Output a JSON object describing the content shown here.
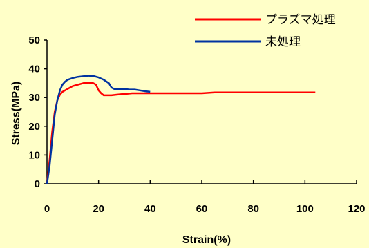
{
  "chart_data": {
    "type": "line",
    "xlabel": "Strain(%)",
    "ylabel": "Stress(MPa)",
    "xlim": [
      0,
      120
    ],
    "ylim": [
      0,
      50
    ],
    "xticks": [
      0,
      20,
      40,
      60,
      80,
      100,
      120
    ],
    "yticks": [
      0,
      10,
      20,
      30,
      40,
      50
    ],
    "grid": false,
    "legend_position": "top-right",
    "series": [
      {
        "name": "プラズマ処理",
        "color": "#FF0000",
        "x": [
          0,
          1,
          2,
          3,
          4,
          5,
          6,
          7,
          8,
          9,
          10,
          12,
          14,
          16,
          18,
          19,
          20,
          21,
          22,
          23,
          25,
          27,
          29,
          31,
          33,
          35,
          40,
          45,
          50,
          55,
          60,
          65,
          70,
          80,
          90,
          104
        ],
        "y": [
          0,
          8,
          18,
          25,
          29,
          31,
          32,
          32.5,
          33,
          33.5,
          34,
          34.5,
          35,
          35.2,
          35,
          34.5,
          32.5,
          31.5,
          30.8,
          30.8,
          30.8,
          31,
          31.2,
          31.3,
          31.5,
          31.5,
          31.5,
          31.5,
          31.5,
          31.5,
          31.5,
          31.8,
          31.8,
          31.8,
          31.8,
          31.8
        ]
      },
      {
        "name": "未処理",
        "color": "#0033A0",
        "x": [
          0,
          1,
          2,
          3,
          4,
          5,
          6,
          7,
          8,
          10,
          12,
          14,
          16,
          18,
          20,
          22,
          24,
          25,
          26,
          28,
          30,
          32,
          34,
          36,
          38,
          40
        ],
        "y": [
          0,
          6,
          15,
          24,
          29,
          32.5,
          34.5,
          35.5,
          36.2,
          36.8,
          37.2,
          37.4,
          37.6,
          37.5,
          37,
          36.2,
          35,
          33.5,
          33,
          33,
          33,
          32.8,
          32.8,
          32.5,
          32.2,
          32
        ]
      }
    ]
  }
}
